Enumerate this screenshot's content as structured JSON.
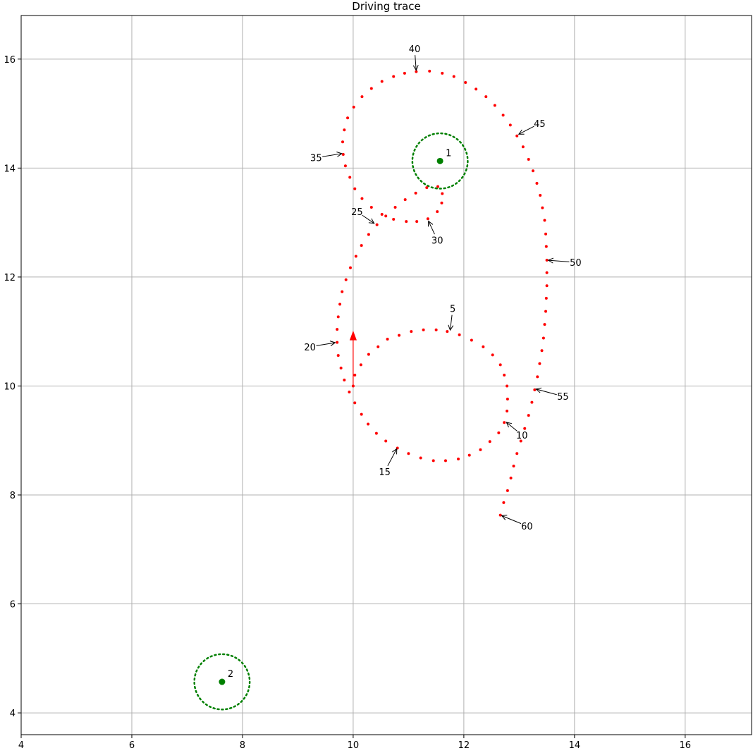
{
  "chart_data": {
    "type": "scatter",
    "title": "Driving trace",
    "xlabel": "",
    "ylabel": "",
    "xlim": [
      4.0,
      17.2
    ],
    "ylim": [
      3.6,
      16.8
    ],
    "grid": true,
    "x_ticks": [
      {
        "value": 4,
        "label": "4"
      },
      {
        "value": 6,
        "label": "6"
      },
      {
        "value": 8,
        "label": "8"
      },
      {
        "value": 10,
        "label": "10"
      },
      {
        "value": 12,
        "label": "12"
      },
      {
        "value": 14,
        "label": "14"
      },
      {
        "value": 16,
        "label": "16"
      }
    ],
    "y_ticks": [
      {
        "value": 4,
        "label": "4"
      },
      {
        "value": 6,
        "label": "6"
      },
      {
        "value": 8,
        "label": "8"
      },
      {
        "value": 10,
        "label": "10"
      },
      {
        "value": 12,
        "label": "12"
      },
      {
        "value": 14,
        "label": "14"
      },
      {
        "value": 16,
        "label": "16"
      }
    ],
    "colors": {
      "trace": "#ff0000",
      "landmark": "#008000",
      "grid": "#b0b0b0",
      "arrow": "#000000"
    },
    "heading_arrow": {
      "from": [
        10.0,
        10.0
      ],
      "to": [
        10.0,
        11.0
      ]
    },
    "landmarks": [
      {
        "id": "1",
        "label": "1",
        "x": 11.57,
        "y": 14.13,
        "radius": 0.5
      },
      {
        "id": "2",
        "label": "2",
        "x": 7.63,
        "y": 4.57,
        "radius": 0.5
      }
    ],
    "trace_points": [
      [
        10.0,
        10.0
      ],
      [
        10.03,
        10.2
      ],
      [
        10.14,
        10.39
      ],
      [
        10.28,
        10.58
      ],
      [
        10.45,
        10.72
      ],
      [
        10.62,
        10.86
      ],
      [
        10.83,
        10.93
      ],
      [
        11.05,
        11.0
      ],
      [
        11.27,
        11.03
      ],
      [
        11.5,
        11.03
      ],
      [
        11.7,
        11.0
      ],
      [
        11.92,
        10.94
      ],
      [
        12.14,
        10.84
      ],
      [
        12.35,
        10.72
      ],
      [
        12.52,
        10.57
      ],
      [
        12.66,
        10.39
      ],
      [
        12.73,
        10.2
      ],
      [
        12.78,
        10.0
      ],
      [
        12.79,
        9.76
      ],
      [
        12.78,
        9.54
      ],
      [
        12.73,
        9.33
      ],
      [
        12.63,
        9.14
      ],
      [
        12.47,
        8.98
      ],
      [
        12.3,
        8.83
      ],
      [
        12.1,
        8.73
      ],
      [
        11.9,
        8.66
      ],
      [
        11.67,
        8.63
      ],
      [
        11.45,
        8.63
      ],
      [
        11.22,
        8.68
      ],
      [
        11.0,
        8.76
      ],
      [
        10.8,
        8.86
      ],
      [
        10.59,
        8.99
      ],
      [
        10.42,
        9.13
      ],
      [
        10.27,
        9.3
      ],
      [
        10.15,
        9.48
      ],
      [
        10.03,
        9.69
      ],
      [
        9.93,
        9.89
      ],
      [
        9.84,
        10.11
      ],
      [
        9.78,
        10.33
      ],
      [
        9.73,
        10.56
      ],
      [
        9.71,
        10.8
      ],
      [
        9.71,
        11.04
      ],
      [
        9.73,
        11.27
      ],
      [
        9.76,
        11.5
      ],
      [
        9.8,
        11.73
      ],
      [
        9.87,
        11.95
      ],
      [
        9.95,
        12.17
      ],
      [
        10.05,
        12.38
      ],
      [
        10.15,
        12.58
      ],
      [
        10.28,
        12.78
      ],
      [
        10.43,
        12.96
      ],
      [
        10.59,
        13.12
      ],
      [
        10.76,
        13.28
      ],
      [
        10.94,
        13.42
      ],
      [
        11.13,
        13.54
      ],
      [
        11.33,
        13.64
      ],
      [
        11.53,
        13.66
      ],
      [
        11.61,
        13.53
      ],
      [
        11.6,
        13.36
      ],
      [
        11.52,
        13.2
      ],
      [
        11.35,
        13.07
      ],
      [
        11.15,
        13.02
      ],
      [
        10.96,
        13.02
      ],
      [
        10.73,
        13.06
      ],
      [
        10.52,
        13.15
      ],
      [
        10.33,
        13.28
      ],
      [
        10.16,
        13.44
      ],
      [
        10.03,
        13.62
      ],
      [
        9.94,
        13.83
      ],
      [
        9.86,
        14.04
      ],
      [
        9.82,
        14.25
      ],
      [
        9.81,
        14.48
      ],
      [
        9.84,
        14.7
      ],
      [
        9.9,
        14.92
      ],
      [
        10.01,
        15.12
      ],
      [
        10.16,
        15.31
      ],
      [
        10.33,
        15.46
      ],
      [
        10.52,
        15.59
      ],
      [
        10.73,
        15.68
      ],
      [
        10.93,
        15.74
      ],
      [
        11.14,
        15.77
      ],
      [
        11.38,
        15.78
      ],
      [
        11.61,
        15.74
      ],
      [
        11.82,
        15.68
      ],
      [
        12.03,
        15.57
      ],
      [
        12.22,
        15.45
      ],
      [
        12.4,
        15.31
      ],
      [
        12.56,
        15.15
      ],
      [
        12.71,
        14.97
      ],
      [
        12.84,
        14.79
      ],
      [
        12.96,
        14.59
      ],
      [
        13.07,
        14.39
      ],
      [
        13.17,
        14.16
      ],
      [
        13.25,
        13.95
      ],
      [
        13.32,
        13.72
      ],
      [
        13.38,
        13.5
      ],
      [
        13.42,
        13.27
      ],
      [
        13.46,
        13.04
      ],
      [
        13.48,
        12.79
      ],
      [
        13.49,
        12.56
      ],
      [
        13.5,
        12.31
      ],
      [
        13.5,
        12.08
      ],
      [
        13.5,
        11.84
      ],
      [
        13.49,
        11.61
      ],
      [
        13.48,
        11.37
      ],
      [
        13.46,
        11.13
      ],
      [
        13.44,
        10.88
      ],
      [
        13.41,
        10.65
      ],
      [
        13.37,
        10.41
      ],
      [
        13.33,
        10.17
      ],
      [
        13.28,
        9.93
      ],
      [
        13.23,
        9.7
      ],
      [
        13.17,
        9.46
      ],
      [
        13.1,
        9.22
      ],
      [
        13.03,
        8.99
      ],
      [
        12.96,
        8.76
      ],
      [
        12.9,
        8.53
      ],
      [
        12.85,
        8.31
      ],
      [
        12.79,
        8.08
      ],
      [
        12.72,
        7.86
      ],
      [
        12.66,
        7.63
      ]
    ],
    "annotations": [
      {
        "label": "5",
        "point": [
          11.75,
          11.0
        ],
        "text": [
          11.8,
          11.42
        ]
      },
      {
        "label": "10",
        "point": [
          12.75,
          9.35
        ],
        "text": [
          13.05,
          9.1
        ]
      },
      {
        "label": "15",
        "point": [
          10.8,
          8.87
        ],
        "text": [
          10.57,
          8.43
        ]
      },
      {
        "label": "20",
        "point": [
          9.7,
          10.8
        ],
        "text": [
          9.22,
          10.72
        ]
      },
      {
        "label": "25",
        "point": [
          10.4,
          12.97
        ],
        "text": [
          10.07,
          13.2
        ]
      },
      {
        "label": "30",
        "point": [
          11.35,
          13.05
        ],
        "text": [
          11.52,
          12.68
        ]
      },
      {
        "label": "35",
        "point": [
          9.82,
          14.27
        ],
        "text": [
          9.33,
          14.19
        ]
      },
      {
        "label": "40",
        "point": [
          11.14,
          15.77
        ],
        "text": [
          11.11,
          16.19
        ]
      },
      {
        "label": "45",
        "point": [
          12.97,
          14.61
        ],
        "text": [
          13.37,
          14.82
        ]
      },
      {
        "label": "50",
        "point": [
          13.5,
          12.31
        ],
        "text": [
          14.02,
          12.27
        ]
      },
      {
        "label": "55",
        "point": [
          13.28,
          9.95
        ],
        "text": [
          13.79,
          9.81
        ]
      },
      {
        "label": "60",
        "point": [
          12.66,
          7.63
        ],
        "text": [
          13.14,
          7.43
        ]
      }
    ]
  }
}
